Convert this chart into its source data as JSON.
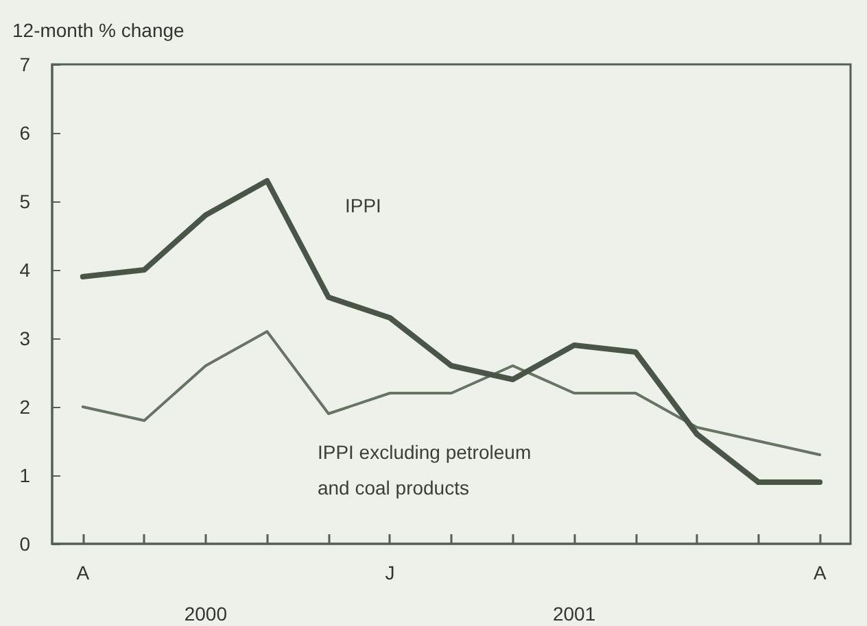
{
  "chart_data": {
    "type": "line",
    "ylabel": "12-month % change",
    "categories": [
      "A",
      null,
      null,
      null,
      null,
      "J",
      null,
      null,
      null,
      null,
      null,
      null,
      "A"
    ],
    "series": [
      {
        "name": "IPPI",
        "color": "#4a5447",
        "values": [
          3.9,
          4.0,
          4.8,
          5.3,
          3.6,
          3.3,
          2.6,
          2.4,
          2.9,
          2.8,
          1.6,
          0.9,
          0.9
        ]
      },
      {
        "name": "IPPI excluding petroleum and coal products",
        "color": "#687364",
        "values": [
          2.0,
          1.8,
          2.6,
          3.1,
          1.9,
          2.2,
          2.2,
          2.6,
          2.2,
          2.2,
          1.7,
          1.5,
          1.3
        ]
      }
    ],
    "ylim": [
      0,
      7
    ],
    "yticks": [
      0,
      1,
      2,
      3,
      4,
      5,
      6,
      7
    ],
    "annotations": [
      "2000",
      "2001"
    ],
    "grid": false,
    "legend": false,
    "marker": "none",
    "line_style": "solid"
  }
}
